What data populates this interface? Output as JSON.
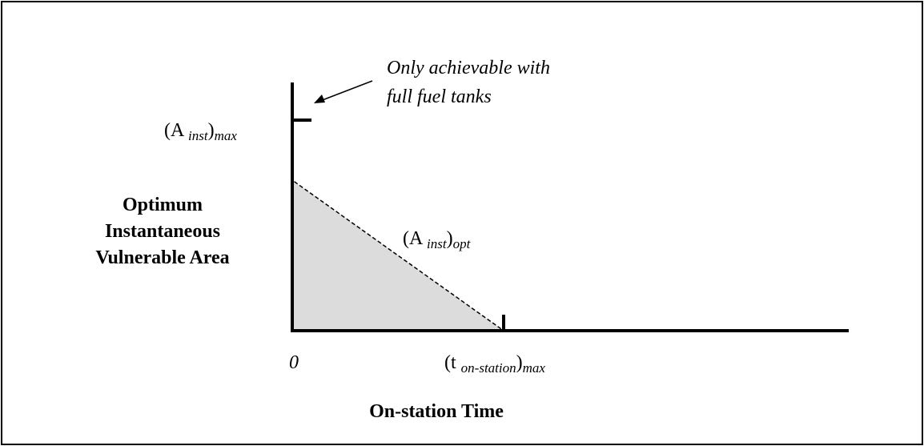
{
  "annotation": {
    "lines": [
      "Only achievable with",
      "full fuel tanks"
    ]
  },
  "y_max_label": {
    "parts": [
      "(A ",
      "inst",
      ")",
      "max"
    ]
  },
  "y_axis_label": {
    "lines": [
      "Optimum",
      "Instantaneous",
      "Vulnerable Area"
    ]
  },
  "line_label": {
    "parts": [
      "(A ",
      "inst",
      ")",
      "opt"
    ]
  },
  "origin_label": "0",
  "x_max_label": {
    "parts": [
      "(t ",
      "on-station",
      ")",
      "max"
    ]
  },
  "x_axis_label": "On-station Time"
}
